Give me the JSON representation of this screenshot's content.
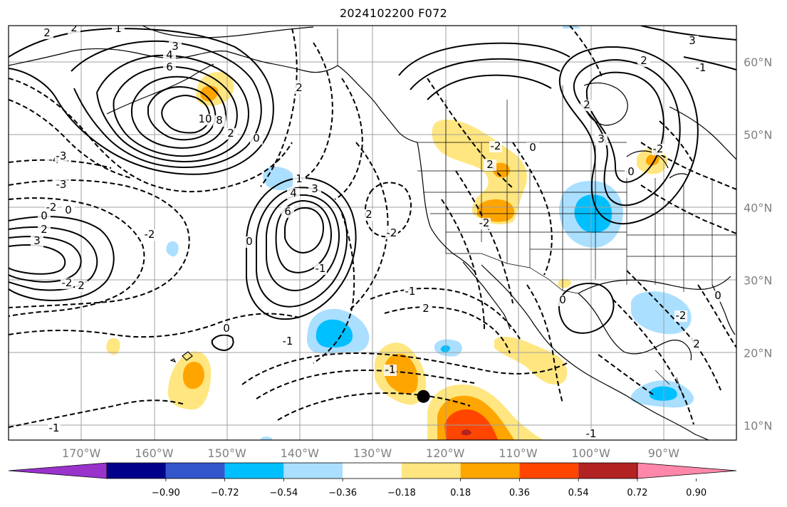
{
  "title": "2024102200 F072",
  "map": {
    "projection": "PlateCarree",
    "lon_range": [
      -180,
      -80
    ],
    "lat_range": [
      8,
      65
    ],
    "gridlines": true,
    "longitude_labels": [
      "170°W",
      "160°W",
      "150°W",
      "140°W",
      "130°W",
      "120°W",
      "110°W",
      "100°W",
      "90°W"
    ],
    "latitude_labels": [
      "60°N",
      "50°N",
      "40°N",
      "30°N",
      "20°N",
      "10°N"
    ],
    "contour_labels": [
      "2",
      "2",
      "1",
      "3",
      "4",
      "6",
      "10",
      "8",
      "2",
      "0",
      "-4",
      "-3",
      "-2",
      "0",
      "0",
      "2",
      "3",
      "-2",
      "1",
      "4",
      "6",
      "3",
      "2",
      "-2",
      "0",
      "-1",
      "-2",
      "2",
      "-3",
      "2",
      "0",
      "-1",
      "-1",
      "2",
      "-1",
      "-2",
      "-2",
      "0",
      "2",
      "2",
      "2",
      "-1",
      "3",
      "3",
      "0",
      "0",
      "-1",
      "-2",
      "-1",
      "2",
      "0",
      "-2"
    ],
    "marker": {
      "label": "",
      "lon": -123,
      "lat": 14
    }
  },
  "colorbar": {
    "ticks": [
      "−0.90",
      "−0.72",
      "−0.54",
      "−0.36",
      "−0.18",
      "0.18",
      "0.36",
      "0.54",
      "0.72",
      "0.90"
    ],
    "colors": [
      "#9933cc",
      "#00008b",
      "#3355cc",
      "#00bfff",
      "#aadfff",
      "#ffffff",
      "#ffe680",
      "#ffa500",
      "#ff4500",
      "#b22222",
      "#ff88aa"
    ],
    "extend": "both"
  },
  "colors": {
    "coast": "#000000",
    "grid": "#a0a0a0",
    "border": "#000000"
  }
}
